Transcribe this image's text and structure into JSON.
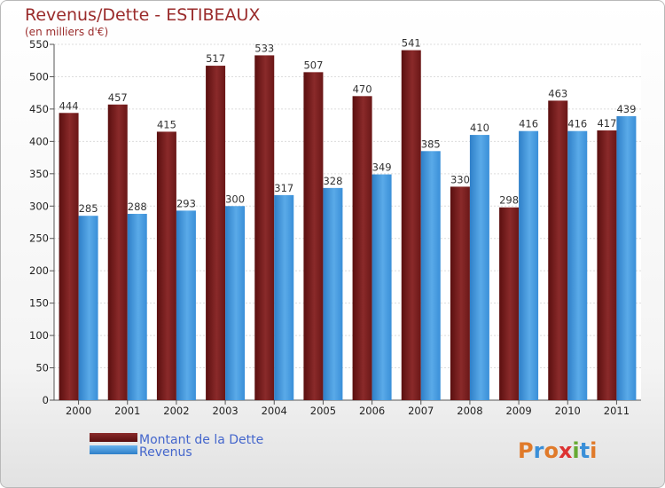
{
  "chart_data": {
    "type": "bar",
    "title": "Revenus/Dette - ESTIBEAUX",
    "subtitle": "(en milliers d'€)",
    "categories": [
      "2000",
      "2001",
      "2002",
      "2003",
      "2004",
      "2005",
      "2006",
      "2007",
      "2008",
      "2009",
      "2010",
      "2011"
    ],
    "series": [
      {
        "name": "Montant de la Dette",
        "color": "#7a1f1f",
        "values": [
          444,
          457,
          415,
          517,
          533,
          507,
          470,
          541,
          330,
          298,
          463,
          417
        ]
      },
      {
        "name": "Revenus",
        "color": "#3a8fd8",
        "values": [
          285,
          288,
          293,
          300,
          317,
          328,
          349,
          385,
          410,
          416,
          416,
          439
        ]
      }
    ],
    "ylim": [
      0,
      550
    ],
    "yticks": [
      0,
      50,
      100,
      150,
      200,
      250,
      300,
      350,
      400,
      450,
      500,
      550
    ],
    "grid": true,
    "legend_position": "bottom-left"
  },
  "brand": {
    "text": "Proxiti",
    "colors": [
      "#e07a2a",
      "#3a8fd8",
      "#e07a2a",
      "#d33",
      "#6a3",
      "#3a8fd8",
      "#e07a2a"
    ]
  }
}
